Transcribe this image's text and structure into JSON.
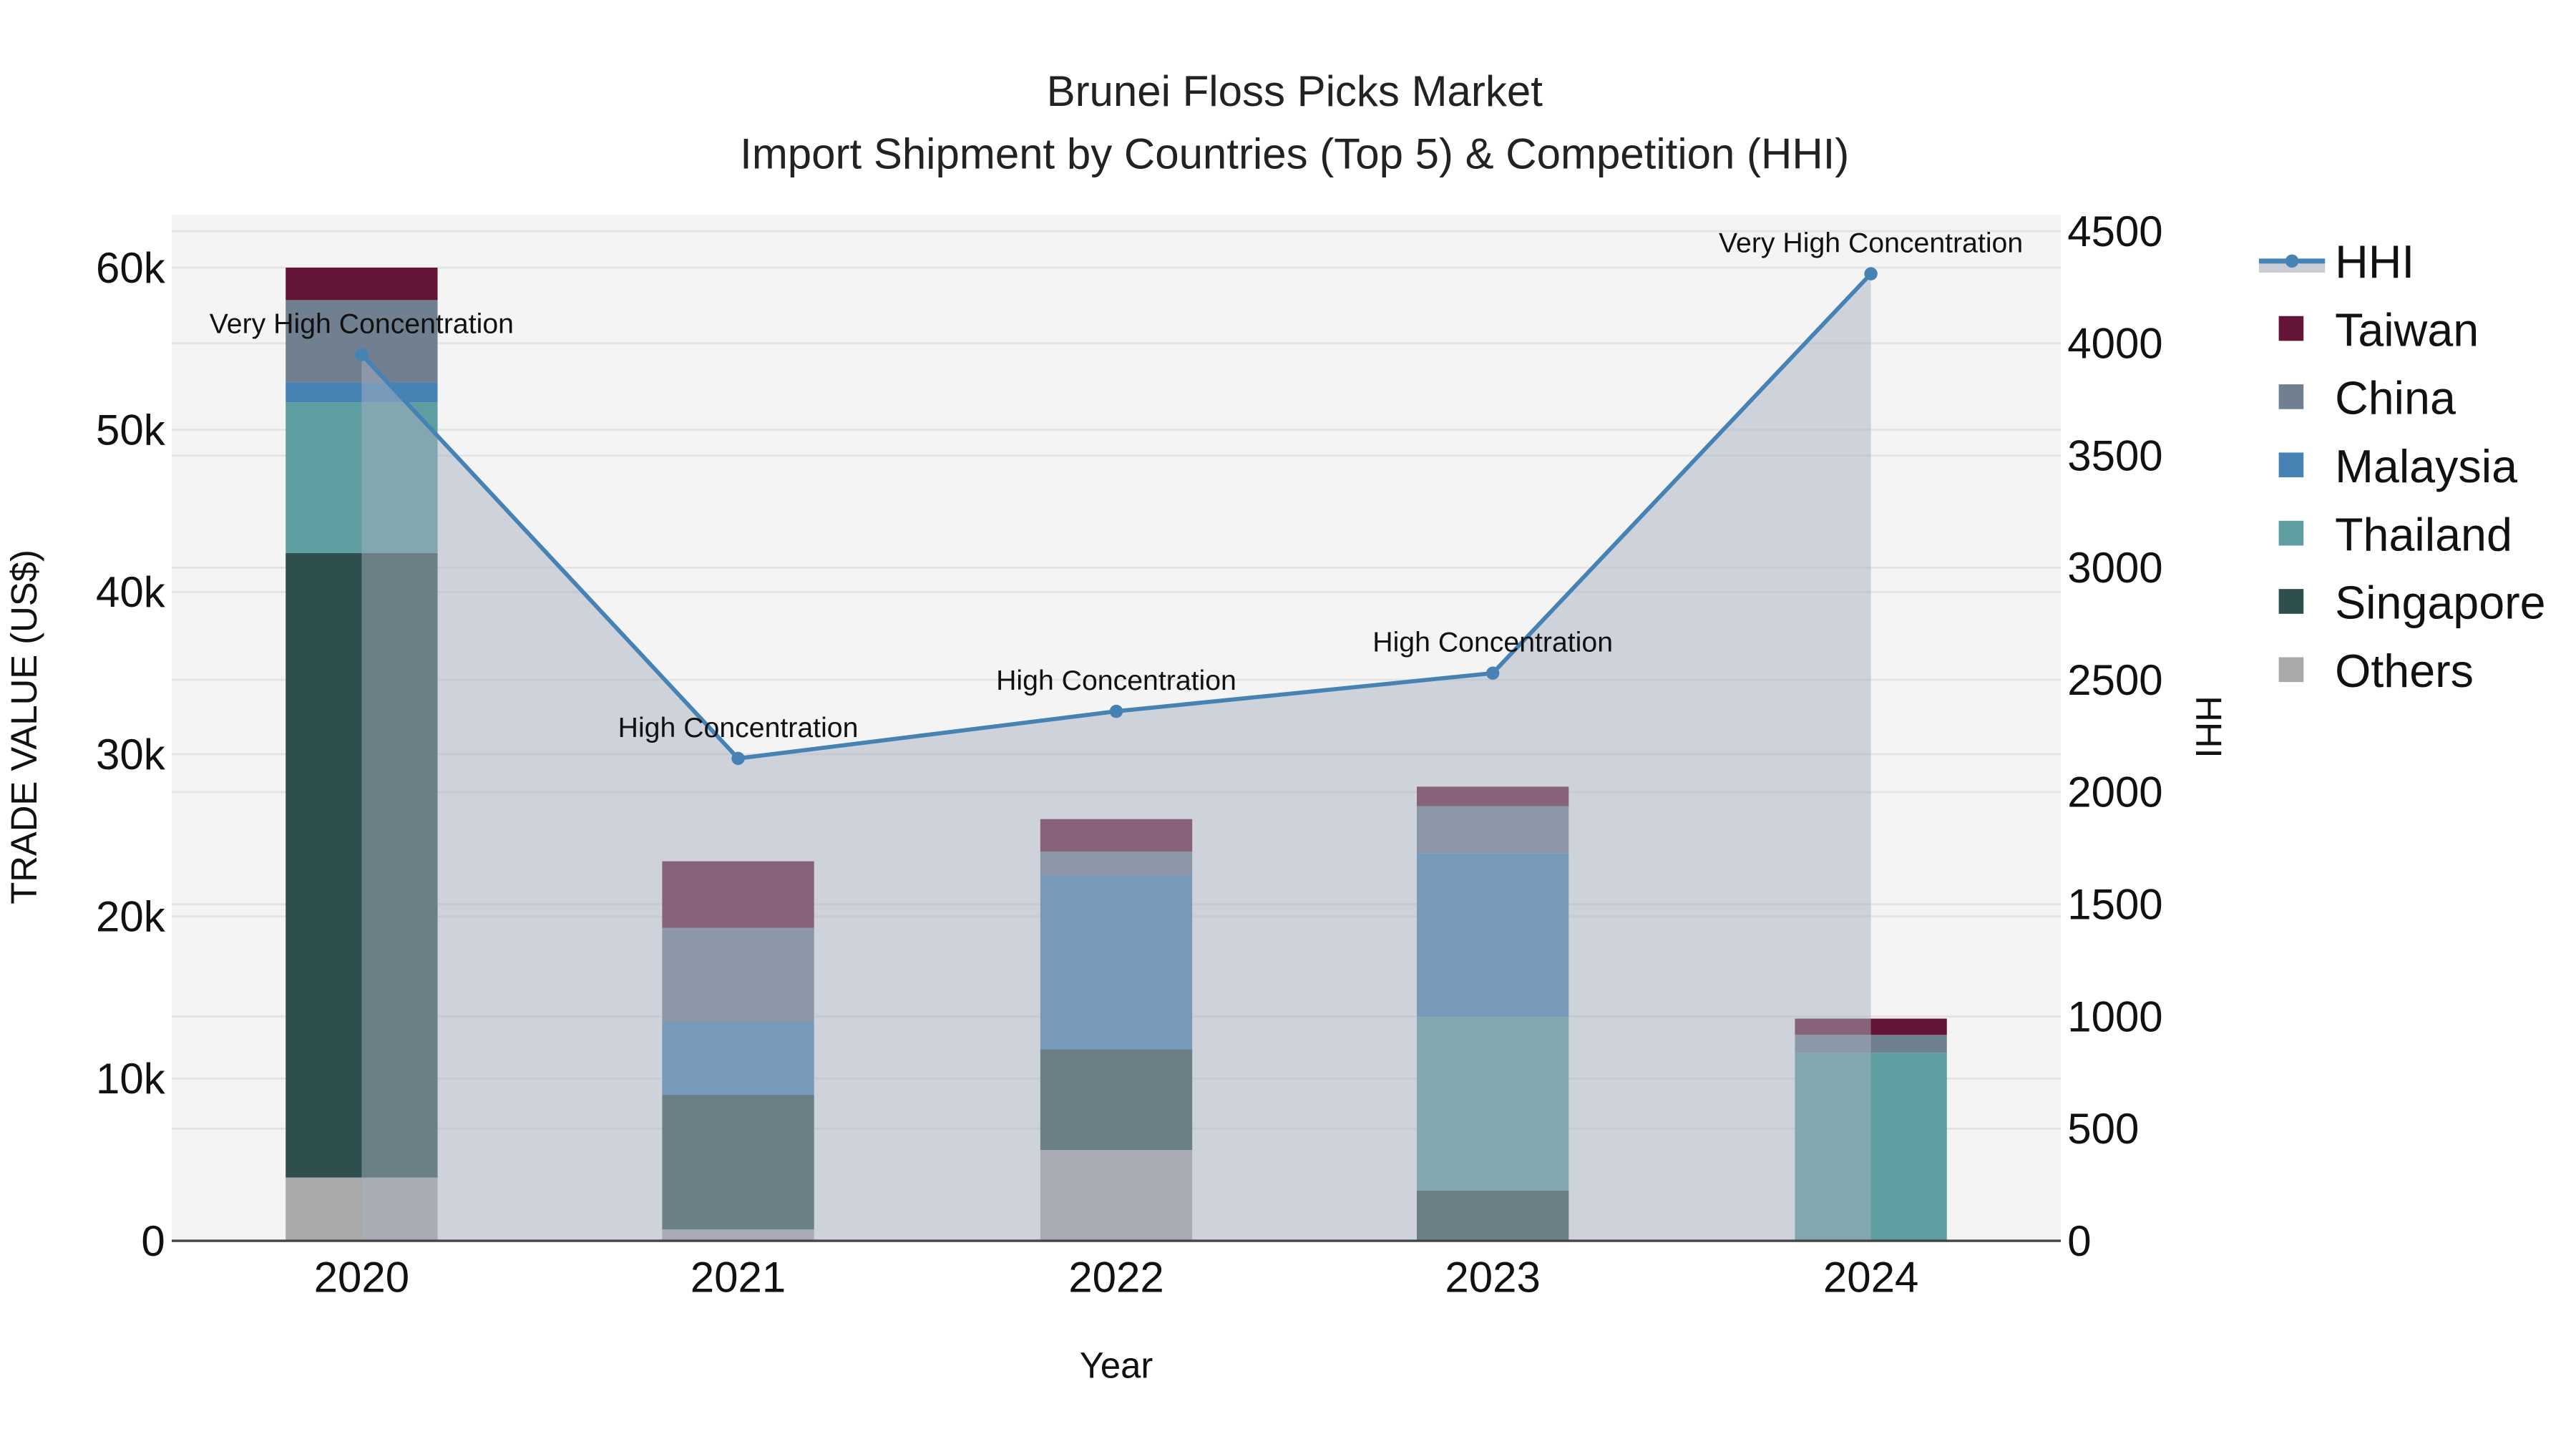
{
  "title_line1": "Brunei Floss Picks Market",
  "title_line2": "Import Shipment by Countries (Top 5) & Competition (HHI)",
  "colors": {
    "Taiwan": "#641436",
    "China": "#708090",
    "Malaysia": "#4682b4",
    "Thailand": "#5f9ea0",
    "Singapore": "#2f4f4f",
    "Others": "#a9a9a9",
    "HHI_line": "#4682b4",
    "HHI_fill": "#c8cdd6",
    "plot_bg": "#f4f4f4",
    "grid": "#e3e3e3"
  },
  "legend": [
    "HHI",
    "Taiwan",
    "China",
    "Malaysia",
    "Thailand",
    "Singapore",
    "Others"
  ],
  "chart_data": {
    "type": "bar",
    "stacked": true,
    "title": "Brunei Floss Picks Market — Import Shipment by Countries (Top 5) & Competition (HHI)",
    "xlabel": "Year",
    "ylabel": "TRADE VALUE (US$)",
    "y2label": "HHI",
    "categories": [
      "2020",
      "2021",
      "2022",
      "2023",
      "2024"
    ],
    "ylim": [
      0,
      63000
    ],
    "y_ticks": [
      "0",
      "10k",
      "20k",
      "30k",
      "40k",
      "50k",
      "60k"
    ],
    "y2lim": [
      0,
      4550
    ],
    "y2_ticks": [
      "0",
      "500",
      "1000",
      "1500",
      "2000",
      "2500",
      "3000",
      "3500",
      "4000",
      "4500"
    ],
    "series": [
      {
        "name": "Others",
        "values": [
          3900,
          700,
          5600,
          0,
          0
        ]
      },
      {
        "name": "Singapore",
        "values": [
          38500,
          8300,
          6200,
          3100,
          0
        ]
      },
      {
        "name": "Thailand",
        "values": [
          9300,
          0,
          0,
          10700,
          11600
        ]
      },
      {
        "name": "Malaysia",
        "values": [
          1200,
          4500,
          10700,
          10100,
          0
        ]
      },
      {
        "name": "China",
        "values": [
          5100,
          5800,
          1500,
          2900,
          1100
        ]
      },
      {
        "name": "Taiwan",
        "values": [
          2000,
          4100,
          2000,
          1200,
          1000
        ]
      }
    ],
    "line_series": {
      "name": "HHI",
      "axis": "y2",
      "values": [
        3950,
        2150,
        2360,
        2530,
        4310
      ],
      "fill": "tozeroy"
    },
    "annotations": [
      "Very High Concentration",
      "High Concentration",
      "High Concentration",
      "High Concentration",
      "Very High Concentration"
    ],
    "legend_position": "right",
    "grid": true
  }
}
